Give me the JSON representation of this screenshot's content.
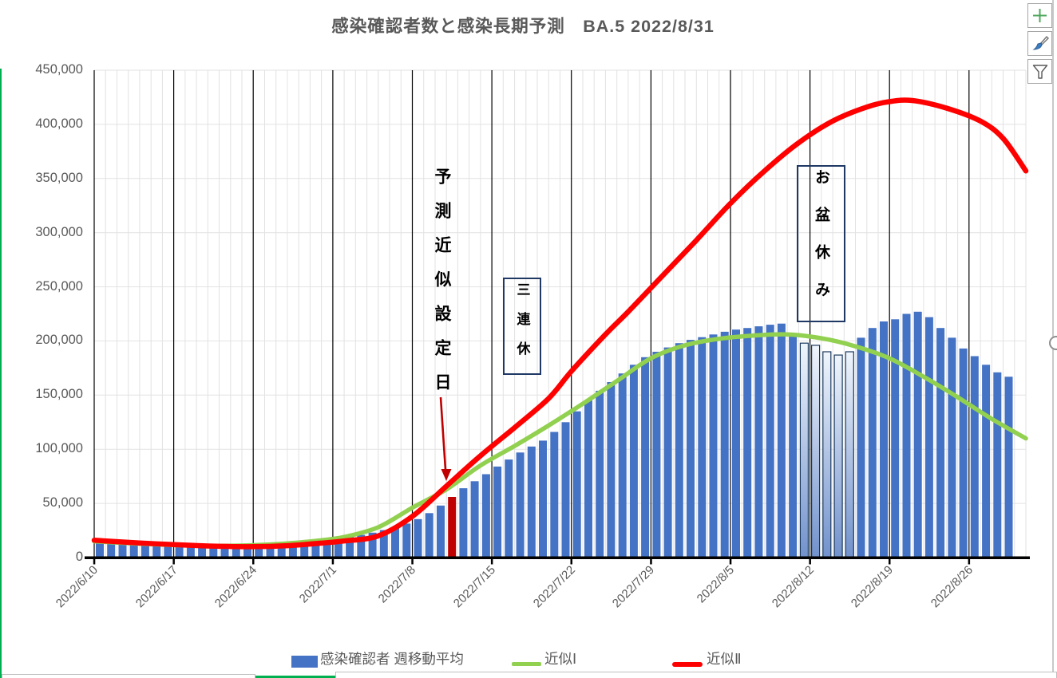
{
  "title": "感染確認者数と感染長期予測　BA.5  2022/8/31",
  "annotations": {
    "prediction_set_day": "予測近似設定日",
    "three_day_weekend": "三連休",
    "obon_holiday": "お盆休み"
  },
  "legend": [
    {
      "label": "感染確認者 週移動平均",
      "color": "#4472C4",
      "type": "bar"
    },
    {
      "label": "近似Ⅰ",
      "color": "#92D050",
      "type": "line"
    },
    {
      "label": "近似Ⅱ",
      "color": "#FF0000",
      "type": "line"
    }
  ],
  "colors": {
    "bar_blue": "#4472C4",
    "red_bar_and_arrow": "#C00000",
    "approx1_green": "#92D050",
    "approx2_red": "#FF0000",
    "annotation_box_border": "#1F3864",
    "axis_text_gray": "#595959",
    "minor_grid": "#E2E2E2",
    "major_grid": "#000000",
    "plus_icon_green": "#4EA75B",
    "brush_tip_blue": "#3B7DBF",
    "window_edge_green": "#00B050"
  },
  "side_buttons": [
    {
      "name": "chart-elements",
      "icon": "plus-icon"
    },
    {
      "name": "chart-styles",
      "icon": "brush-icon"
    },
    {
      "name": "chart-filters",
      "icon": "funnel-icon"
    }
  ],
  "chart_data": {
    "type": "composite",
    "title": "感染確認者数と感染長期予測　BA.5  2022/8/31",
    "ylim": [
      0,
      450000
    ],
    "grid": "weekly major vertical (black), daily minor vertical (light gray), horizontal every 50,000 (light gray)",
    "legend_position": "bottom",
    "y_tick_labels": [
      "450,000",
      "400,000",
      "350,000",
      "300,000",
      "250,000",
      "200,000",
      "150,000",
      "100,000",
      "50,000",
      "0"
    ],
    "x_tick_labels": [
      "2022/6/10",
      "2022/6/17",
      "2022/6/24",
      "2022/7/1",
      "2022/7/8",
      "2022/7/15",
      "2022/7/22",
      "2022/7/29",
      "2022/8/5",
      "2022/8/12",
      "2022/8/19",
      "2022/8/26"
    ],
    "x_domain_days": [
      0,
      82
    ],
    "x_domain_note": "day 0 = 2022/6/10, day 82 = 2022/8/31 (right edge); approximation curves extend to 8/31, bars end 8/29",
    "bar_series": {
      "name": "感染確認者 週移動平均",
      "color": "#4472C4",
      "dates": [
        "6/10",
        "6/11",
        "6/12",
        "6/13",
        "6/14",
        "6/15",
        "6/16",
        "6/17",
        "6/18",
        "6/19",
        "6/20",
        "6/21",
        "6/22",
        "6/23",
        "6/24",
        "6/25",
        "6/26",
        "6/27",
        "6/28",
        "6/29",
        "6/30",
        "7/1",
        "7/2",
        "7/3",
        "7/4",
        "7/5",
        "7/6",
        "7/7",
        "7/8",
        "7/9",
        "7/10",
        "7/11",
        "7/12",
        "7/13",
        "7/14",
        "7/15",
        "7/16",
        "7/17",
        "7/18",
        "7/19",
        "7/20",
        "7/21",
        "7/22",
        "7/23",
        "7/24",
        "7/25",
        "7/26",
        "7/27",
        "7/28",
        "7/29",
        "7/30",
        "7/31",
        "8/1",
        "8/2",
        "8/3",
        "8/4",
        "8/5",
        "8/6",
        "8/7",
        "8/8",
        "8/9",
        "8/10",
        "8/11",
        "8/12",
        "8/13",
        "8/14",
        "8/15",
        "8/16",
        "8/17",
        "8/18",
        "8/19",
        "8/20",
        "8/21",
        "8/22",
        "8/23",
        "8/24",
        "8/25",
        "8/26",
        "8/27",
        "8/28",
        "8/29"
      ],
      "values": [
        14500,
        14100,
        13700,
        13200,
        12700,
        12300,
        11900,
        11600,
        11300,
        11100,
        11000,
        11000,
        11100,
        11300,
        11600,
        12000,
        12500,
        13100,
        13900,
        14900,
        16100,
        17500,
        19100,
        20900,
        23000,
        25400,
        28200,
        31400,
        35500,
        41000,
        48000,
        56000,
        64000,
        70500,
        77000,
        84000,
        90500,
        97000,
        102500,
        108000,
        116000,
        125000,
        135000,
        145000,
        154000,
        162000,
        170000,
        178000,
        185000,
        190000,
        194000,
        198000,
        201000,
        203500,
        206000,
        208500,
        210500,
        212000,
        213500,
        215000,
        216000,
        207000,
        198000,
        196000,
        190000,
        187000,
        190000,
        203000,
        212000,
        218000,
        220000,
        225000,
        227000,
        222000,
        212000,
        203000,
        193000,
        186000,
        178000,
        171000,
        167000
      ],
      "red_bar_index": 31,
      "red_bar_date": "7/11",
      "red_bar_color": "#C00000",
      "holiday_gradient_indices": [
        62,
        63,
        64,
        65,
        66
      ],
      "holiday_gradient_dates": [
        "8/11",
        "8/12",
        "8/13",
        "8/14",
        "8/15"
      ]
    },
    "line_series": [
      {
        "name": "近似Ⅰ",
        "color": "#92D050",
        "points": [
          [
            0,
            15000
          ],
          [
            4,
            12800
          ],
          [
            8,
            11300
          ],
          [
            11,
            10800
          ],
          [
            14,
            11400
          ],
          [
            17,
            13000
          ],
          [
            20,
            16000
          ],
          [
            22,
            19000
          ],
          [
            25,
            28000
          ],
          [
            28,
            46000
          ],
          [
            31,
            63000
          ],
          [
            34,
            85000
          ],
          [
            37,
            103000
          ],
          [
            40,
            122000
          ],
          [
            43,
            142000
          ],
          [
            46,
            163000
          ],
          [
            49,
            184000
          ],
          [
            52,
            196000
          ],
          [
            55,
            202000
          ],
          [
            58,
            205000
          ],
          [
            61,
            206000
          ],
          [
            64,
            202500
          ],
          [
            67,
            195000
          ],
          [
            70,
            184000
          ],
          [
            73,
            167000
          ],
          [
            76,
            148000
          ],
          [
            79,
            128000
          ],
          [
            82,
            110000
          ]
        ]
      },
      {
        "name": "近似Ⅱ",
        "color": "#FF0000",
        "points": [
          [
            0,
            16000
          ],
          [
            4,
            13500
          ],
          [
            8,
            11500
          ],
          [
            11,
            10400
          ],
          [
            14,
            10100
          ],
          [
            17,
            11000
          ],
          [
            20,
            13300
          ],
          [
            22,
            15300
          ],
          [
            25,
            20000
          ],
          [
            28,
            38000
          ],
          [
            31,
            66000
          ],
          [
            34,
            94000
          ],
          [
            37,
            120000
          ],
          [
            40,
            147000
          ],
          [
            42,
            172000
          ],
          [
            45,
            206000
          ],
          [
            47,
            227000
          ],
          [
            50,
            260000
          ],
          [
            53,
            293000
          ],
          [
            56,
            327000
          ],
          [
            59,
            357000
          ],
          [
            62,
            383000
          ],
          [
            65,
            403000
          ],
          [
            68,
            416000
          ],
          [
            70,
            421000
          ],
          [
            72,
            422000
          ],
          [
            75,
            415000
          ],
          [
            78,
            403000
          ],
          [
            80,
            387000
          ],
          [
            82,
            357000
          ]
        ]
      }
    ]
  }
}
